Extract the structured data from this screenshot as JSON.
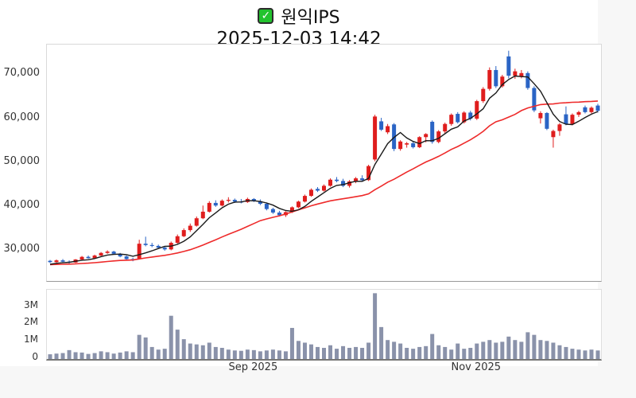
{
  "header": {
    "title": "원익IPS",
    "subtitle": "2025-12-03 14:42",
    "checkbox_icon": "✓"
  },
  "colors": {
    "up": "#df1d1d",
    "down": "#2a64c5",
    "ma_fast": "#1a1a1a",
    "ma_slow": "#ee2a2a",
    "volume_bar": "#8a92aa",
    "checkbox_green": "#22c32e"
  },
  "chart_data": {
    "type": "candlestick+volume",
    "title": "원익IPS",
    "subtitle": "2025-12-03 14:42",
    "grid": "off",
    "legend": "none",
    "price_axis": {
      "min": 22900,
      "max": 76800,
      "ticks": [
        {
          "value": 70000,
          "label": "70,000"
        },
        {
          "value": 60000,
          "label": "60,000"
        },
        {
          "value": 50000,
          "label": "50,000"
        },
        {
          "value": 40000,
          "label": "40,000"
        },
        {
          "value": 30000,
          "label": "30,000"
        }
      ]
    },
    "volume_axis": {
      "max_millions": 3.9,
      "ticks": [
        {
          "value": 3,
          "label": "3M"
        },
        {
          "value": 2,
          "label": "2M"
        },
        {
          "value": 1,
          "label": "1M"
        },
        {
          "value": 0,
          "label": "0"
        }
      ]
    },
    "x_ticks": [
      {
        "index": 32,
        "label": "Sep 2025"
      },
      {
        "index": 67,
        "label": "Nov 2025"
      }
    ],
    "ma_fast_window": 5,
    "ma_slow_window": 20,
    "pre_close": 26600,
    "candles_format": [
      "open",
      "high",
      "low",
      "close",
      "volume_millions"
    ],
    "candles": [
      [
        27500,
        27700,
        27000,
        27200,
        0.18
      ],
      [
        27200,
        27800,
        27100,
        27600,
        0.22
      ],
      [
        27600,
        27900,
        27200,
        27300,
        0.25
      ],
      [
        27300,
        27600,
        26900,
        27100,
        0.42
      ],
      [
        27100,
        27900,
        27000,
        27800,
        0.3
      ],
      [
        27800,
        28600,
        27700,
        28400,
        0.28
      ],
      [
        28400,
        28700,
        28000,
        28100,
        0.2
      ],
      [
        28100,
        28900,
        28000,
        28700,
        0.25
      ],
      [
        28700,
        29500,
        28600,
        29300,
        0.35
      ],
      [
        29300,
        29900,
        29100,
        29600,
        0.3
      ],
      [
        29600,
        29800,
        28900,
        29100,
        0.22
      ],
      [
        29100,
        29300,
        28300,
        28500,
        0.28
      ],
      [
        28500,
        28700,
        27600,
        27900,
        0.35
      ],
      [
        27900,
        28200,
        27400,
        27600,
        0.3
      ],
      [
        28000,
        32300,
        27900,
        31400,
        1.3
      ],
      [
        31400,
        33000,
        30800,
        31100,
        1.15
      ],
      [
        31100,
        31600,
        30600,
        30900,
        0.6
      ],
      [
        30900,
        31200,
        30300,
        30500,
        0.45
      ],
      [
        30500,
        30800,
        29800,
        30100,
        0.5
      ],
      [
        30100,
        31900,
        29900,
        31600,
        2.4
      ],
      [
        31600,
        33500,
        31400,
        33100,
        1.6
      ],
      [
        33100,
        34900,
        32900,
        34500,
        1.05
      ],
      [
        34500,
        36000,
        34100,
        35500,
        0.8
      ],
      [
        35500,
        37600,
        35300,
        37200,
        0.75
      ],
      [
        37200,
        40100,
        37000,
        38700,
        0.7
      ],
      [
        38700,
        41100,
        38500,
        40700,
        0.85
      ],
      [
        40700,
        41300,
        39800,
        40100,
        0.6
      ],
      [
        40100,
        41500,
        39900,
        41200,
        0.55
      ],
      [
        41200,
        42000,
        40800,
        41400,
        0.45
      ],
      [
        41400,
        41700,
        40700,
        41000,
        0.4
      ],
      [
        41000,
        41600,
        40600,
        40900,
        0.38
      ],
      [
        40900,
        41900,
        40700,
        41600,
        0.45
      ],
      [
        41600,
        41800,
        40900,
        41100,
        0.42
      ],
      [
        41100,
        41500,
        40200,
        40500,
        0.35
      ],
      [
        40500,
        40800,
        39000,
        39300,
        0.4
      ],
      [
        39300,
        39600,
        38200,
        38500,
        0.45
      ],
      [
        38500,
        38900,
        37600,
        37900,
        0.4
      ],
      [
        37900,
        38800,
        37500,
        38600,
        0.35
      ],
      [
        38600,
        39900,
        38400,
        39700,
        1.7
      ],
      [
        39700,
        41200,
        39500,
        41000,
        0.95
      ],
      [
        41000,
        42600,
        40800,
        42300,
        0.85
      ],
      [
        42300,
        44000,
        42100,
        43700,
        0.75
      ],
      [
        43900,
        44300,
        43200,
        43500,
        0.6
      ],
      [
        43500,
        44900,
        43300,
        44600,
        0.55
      ],
      [
        44600,
        46300,
        44400,
        46000,
        0.7
      ],
      [
        46000,
        46600,
        45400,
        45700,
        0.5
      ],
      [
        45700,
        46200,
        44300,
        44600,
        0.65
      ],
      [
        44600,
        45900,
        44200,
        45600,
        0.55
      ],
      [
        45600,
        46600,
        45200,
        46300,
        0.6
      ],
      [
        46300,
        47000,
        45500,
        45900,
        0.55
      ],
      [
        45900,
        49400,
        45700,
        49100,
        0.85
      ],
      [
        50600,
        60800,
        50200,
        60400,
        3.7
      ],
      [
        59300,
        60100,
        57100,
        57400,
        1.75
      ],
      [
        56800,
        58700,
        56400,
        58200,
        1.0
      ],
      [
        58600,
        58900,
        52500,
        53000,
        0.9
      ],
      [
        53000,
        55000,
        52600,
        54700,
        0.8
      ],
      [
        54000,
        54600,
        53300,
        54300,
        0.55
      ],
      [
        54300,
        54700,
        53100,
        53400,
        0.5
      ],
      [
        53400,
        55900,
        53200,
        55700,
        0.6
      ],
      [
        55700,
        56600,
        54500,
        56400,
        0.65
      ],
      [
        59200,
        59500,
        54200,
        54600,
        1.35
      ],
      [
        54600,
        57300,
        54300,
        57000,
        0.7
      ],
      [
        57000,
        59000,
        56600,
        58700,
        0.6
      ],
      [
        58700,
        61100,
        58300,
        60800,
        0.45
      ],
      [
        61000,
        61400,
        58800,
        59100,
        0.8
      ],
      [
        59100,
        61600,
        58800,
        61300,
        0.5
      ],
      [
        61300,
        61700,
        59500,
        59900,
        0.55
      ],
      [
        59900,
        64200,
        59600,
        63900,
        0.8
      ],
      [
        63900,
        67100,
        63500,
        66700,
        0.9
      ],
      [
        66700,
        71600,
        66300,
        71000,
        1.0
      ],
      [
        71000,
        71900,
        66900,
        67300,
        0.85
      ],
      [
        67300,
        69900,
        67000,
        69500,
        0.9
      ],
      [
        74100,
        75400,
        69100,
        69700,
        1.2
      ],
      [
        69700,
        71300,
        69000,
        70700,
        1.0
      ],
      [
        69500,
        71000,
        69100,
        70300,
        0.9
      ],
      [
        70300,
        70700,
        66500,
        66900,
        1.45
      ],
      [
        66900,
        67300,
        61400,
        61800,
        1.3
      ],
      [
        60000,
        61600,
        58800,
        61200,
        1.0
      ],
      [
        61200,
        61400,
        57300,
        57600,
        0.95
      ],
      [
        55700,
        57400,
        53300,
        57100,
        0.85
      ],
      [
        57100,
        58900,
        56000,
        58600,
        0.7
      ],
      [
        60900,
        62700,
        58400,
        58700,
        0.6
      ],
      [
        58700,
        61100,
        58400,
        60800,
        0.5
      ],
      [
        60800,
        61700,
        60300,
        61400,
        0.45
      ],
      [
        62500,
        62900,
        61100,
        61400,
        0.4
      ],
      [
        61400,
        62700,
        61100,
        62400,
        0.45
      ],
      [
        62900,
        63300,
        61300,
        61700,
        0.4
      ]
    ]
  }
}
